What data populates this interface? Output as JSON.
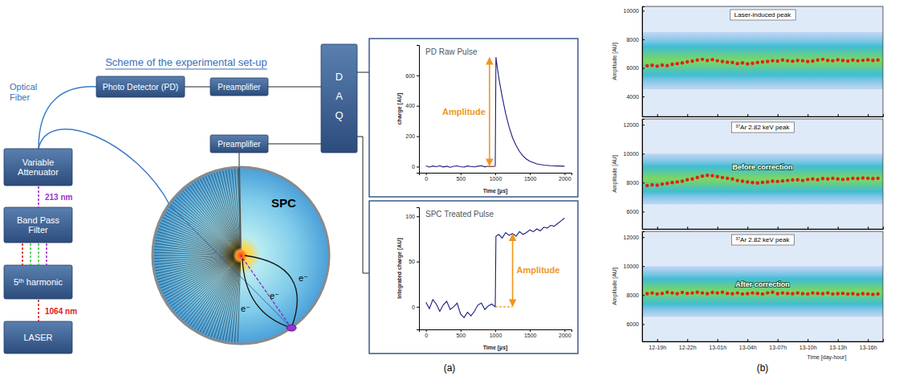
{
  "diagram": {
    "title": "Scheme of the experimental set-up",
    "optical_fiber": [
      "Optical",
      "Fiber"
    ],
    "photo_detector": "Photo Detector (PD)",
    "preamplifiers": [
      "Preamplifier",
      "Preamplifier"
    ],
    "daq": [
      "D",
      "A",
      "Q"
    ],
    "variable_attenuator": "Variable Attenuator",
    "wavelength_uv": "213 nm",
    "band_pass_filter": "Band Pass Filter",
    "harmonic": "5ᵗʰ harmonic",
    "wavelength_ir": "1064 nm",
    "laser": "LASER",
    "detector": "SPC",
    "electrons": [
      "e⁻",
      "e⁻",
      "e⁻"
    ]
  },
  "captions": [
    "(a)",
    "(b)"
  ],
  "chart_data": [
    {
      "type": "line",
      "title": "PD Raw Pulse",
      "x_label": "Time [µs]",
      "y_label": "charge [AU]",
      "annotation": "Amplitude",
      "color": "#1c1c7a",
      "x": [
        0,
        50,
        100,
        150,
        200,
        250,
        300,
        350,
        400,
        450,
        500,
        550,
        600,
        650,
        700,
        750,
        800,
        850,
        900,
        950,
        1000,
        1010,
        1030,
        1060,
        1100,
        1150,
        1200,
        1250,
        1300,
        1350,
        1400,
        1450,
        1500,
        1600,
        1700,
        1800,
        1900,
        2000
      ],
      "values": [
        5,
        -3,
        4,
        0,
        6,
        -2,
        3,
        -4,
        2,
        5,
        0,
        -3,
        4,
        1,
        -2,
        3,
        6,
        -1,
        2,
        0,
        3,
        720,
        650,
        560,
        460,
        350,
        260,
        190,
        140,
        100,
        70,
        50,
        35,
        18,
        10,
        6,
        4,
        3
      ],
      "xlim": [
        -100,
        2100
      ],
      "ylim": [
        -40,
        800
      ],
      "xticks": [
        0,
        500,
        1000,
        1500,
        2000
      ],
      "yticks": [
        0,
        200,
        400,
        600
      ]
    },
    {
      "type": "line",
      "title": "SPC Treated Pulse",
      "x_label": "Time [µs]",
      "y_label": "Integrated charge [AU]",
      "annotation": "Amplitude",
      "color": "#1c1c7a",
      "x": [
        0,
        50,
        100,
        150,
        200,
        250,
        300,
        350,
        400,
        450,
        500,
        550,
        600,
        650,
        700,
        750,
        800,
        850,
        900,
        950,
        1000,
        1010,
        1050,
        1100,
        1150,
        1200,
        1250,
        1300,
        1350,
        1400,
        1450,
        1500,
        1550,
        1600,
        1650,
        1700,
        1750,
        1800,
        1850,
        1900,
        1950,
        2000
      ],
      "values": [
        5,
        -2,
        8,
        3,
        -5,
        2,
        6,
        -3,
        0,
        4,
        -8,
        -12,
        -6,
        -10,
        -5,
        2,
        4,
        -3,
        1,
        3,
        0,
        78,
        80,
        76,
        82,
        79,
        81,
        78,
        83,
        80,
        82,
        85,
        83,
        86,
        84,
        88,
        87,
        90,
        89,
        92,
        95,
        98
      ],
      "xlim": [
        -100,
        2100
      ],
      "ylim": [
        -25,
        110
      ],
      "xticks": [
        0,
        500,
        1000,
        1500,
        2000
      ],
      "yticks": [
        0,
        50,
        100
      ]
    },
    {
      "type": "scatter",
      "title": "Laser-induced peak",
      "y_label": "Amplitude [AU]",
      "color": "#e0201b",
      "marker": "circle",
      "tick_labels": "y",
      "x": [
        18,
        18.5,
        19,
        19.5,
        20,
        20.5,
        21,
        21.5,
        22,
        22.5,
        23,
        23.5,
        24,
        24.5,
        25,
        25.5,
        26,
        26.5,
        27,
        27.5,
        28,
        28.5,
        29,
        29.5,
        30,
        30.5,
        31,
        31.5,
        32,
        32.5,
        33,
        33.5,
        34,
        34.5,
        35,
        35.5,
        36,
        36.5,
        37,
        37.5,
        38,
        38.5,
        39,
        39.5,
        40,
        40.5,
        41
      ],
      "values": [
        6150,
        6180,
        6120,
        6200,
        6160,
        6250,
        6300,
        6350,
        6420,
        6480,
        6550,
        6600,
        6520,
        6580,
        6500,
        6450,
        6400,
        6380,
        6300,
        6350,
        6280,
        6320,
        6380,
        6420,
        6450,
        6500,
        6480,
        6550,
        6500,
        6470,
        6520,
        6500,
        6450,
        6480,
        6550,
        6600,
        6520,
        6500,
        6560,
        6520,
        6480,
        6550,
        6500,
        6530,
        6560,
        6520,
        6550
      ],
      "band": [
        4500,
        8500
      ],
      "xlim": [
        17.5,
        41.5
      ],
      "ylim": [
        2600,
        10300
      ],
      "xticks": [
        19,
        22,
        25,
        28,
        31,
        34,
        37,
        40
      ],
      "yticks": [
        4000,
        6000,
        8000,
        10000
      ]
    },
    {
      "type": "scatter",
      "title": "³⁷Ar 2.82 keV peak",
      "annotation": "Before correction",
      "y_label": "Amplitude [AU]",
      "color": "#e0201b",
      "marker": "circle",
      "tick_labels": "y",
      "x": [
        18,
        18.5,
        19,
        19.5,
        20,
        20.5,
        21,
        21.5,
        22,
        22.5,
        23,
        23.5,
        24,
        24.5,
        25,
        25.5,
        26,
        26.5,
        27,
        27.5,
        28,
        28.5,
        29,
        29.5,
        30,
        30.5,
        31,
        31.5,
        32,
        32.5,
        33,
        33.5,
        34,
        34.5,
        35,
        35.5,
        36,
        36.5,
        37,
        37.5,
        38,
        38.5,
        39,
        39.5,
        40,
        40.5,
        41
      ],
      "values": [
        7800,
        7850,
        7820,
        7900,
        7950,
        8000,
        8050,
        8100,
        8200,
        8250,
        8350,
        8450,
        8500,
        8480,
        8420,
        8350,
        8300,
        8250,
        8150,
        8100,
        8050,
        8000,
        7980,
        8020,
        8050,
        8100,
        8080,
        8120,
        8150,
        8180,
        8200,
        8150,
        8220,
        8250,
        8200,
        8280,
        8250,
        8300,
        8260,
        8220,
        8250,
        8300,
        8280,
        8320,
        8300,
        8280,
        8300
      ],
      "band": [
        6500,
        10000
      ],
      "xlim": [
        17.5,
        41.5
      ],
      "ylim": [
        4800,
        12400
      ],
      "xticks": [
        19,
        22,
        25,
        28,
        31,
        34,
        37,
        40
      ],
      "yticks": [
        6000,
        8000,
        10000,
        12000
      ]
    },
    {
      "type": "scatter",
      "title": "³⁷Ar 2.82 keV peak",
      "annotation": "After correction",
      "y_label": "Amplitude [AU]",
      "x_label": "Time [day-hour]",
      "color": "#e0201b",
      "marker": "circle",
      "x": [
        18,
        18.5,
        19,
        19.5,
        20,
        20.5,
        21,
        21.5,
        22,
        22.5,
        23,
        23.5,
        24,
        24.5,
        25,
        25.5,
        26,
        26.5,
        27,
        27.5,
        28,
        28.5,
        29,
        29.5,
        30,
        30.5,
        31,
        31.5,
        32,
        32.5,
        33,
        33.5,
        34,
        34.5,
        35,
        35.5,
        36,
        36.5,
        37,
        37.5,
        38,
        38.5,
        39,
        39.5,
        40,
        40.5,
        41
      ],
      "values": [
        8100,
        8150,
        8080,
        8120,
        8200,
        8150,
        8100,
        8180,
        8120,
        8150,
        8200,
        8150,
        8100,
        8180,
        8150,
        8200,
        8120,
        8100,
        8150,
        8080,
        8100,
        8150,
        8120,
        8080,
        8150,
        8200,
        8100,
        8150,
        8120,
        8100,
        8150,
        8100,
        8080,
        8150,
        8120,
        8100,
        8150,
        8080,
        8100,
        8120,
        8080,
        8100,
        8050,
        8100,
        8080,
        8050,
        8080
      ],
      "band": [
        6500,
        10000
      ],
      "xlim": [
        17.5,
        41.5
      ],
      "ylim": [
        4800,
        12400
      ],
      "xticks": [
        {
          "value": 19,
          "label": "12-19h"
        },
        {
          "value": 22,
          "label": "12-22h"
        },
        {
          "value": 25,
          "label": "13-01h"
        },
        {
          "value": 28,
          "label": "13-04h"
        },
        {
          "value": 31,
          "label": "13-07h"
        },
        {
          "value": 34,
          "label": "13-10h"
        },
        {
          "value": 37,
          "label": "13-13h"
        },
        {
          "value": 40,
          "label": "13-16h"
        }
      ],
      "yticks": [
        6000,
        8000,
        10000,
        12000
      ]
    }
  ]
}
